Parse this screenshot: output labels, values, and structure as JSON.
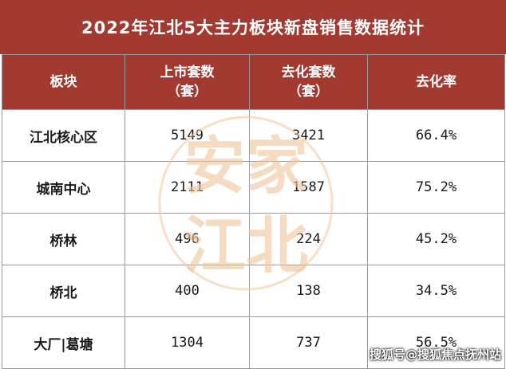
{
  "title": "2022年江北5大主力板块新盘销售数据统计",
  "headers": {
    "col1": "板块",
    "col2_line1": "上市套数",
    "col2_line2": "（套）",
    "col3_line1": "去化套数",
    "col3_line2": "（套）",
    "col4": "去化率"
  },
  "rows": [
    {
      "name": "江北核心区",
      "listed": "5149",
      "sold": "3421",
      "rate": "66.4%"
    },
    {
      "name": "城南中心",
      "listed": "2111",
      "sold": "1587",
      "rate": "75.2%"
    },
    {
      "name": "桥林",
      "listed": "496",
      "sold": "224",
      "rate": "45.2%"
    },
    {
      "name": "桥北",
      "listed": "400",
      "sold": "138",
      "rate": "34.5%"
    },
    {
      "name": "大厂|葛塘",
      "listed": "1304",
      "sold": "737",
      "rate": "56.5%"
    }
  ],
  "watermark": {
    "line1": "安家",
    "line2": "江北"
  },
  "source": "搜狐号@搜狐焦点抚州站",
  "colors": {
    "header_bg": "#a23a32",
    "watermark": "#f0c49a"
  }
}
